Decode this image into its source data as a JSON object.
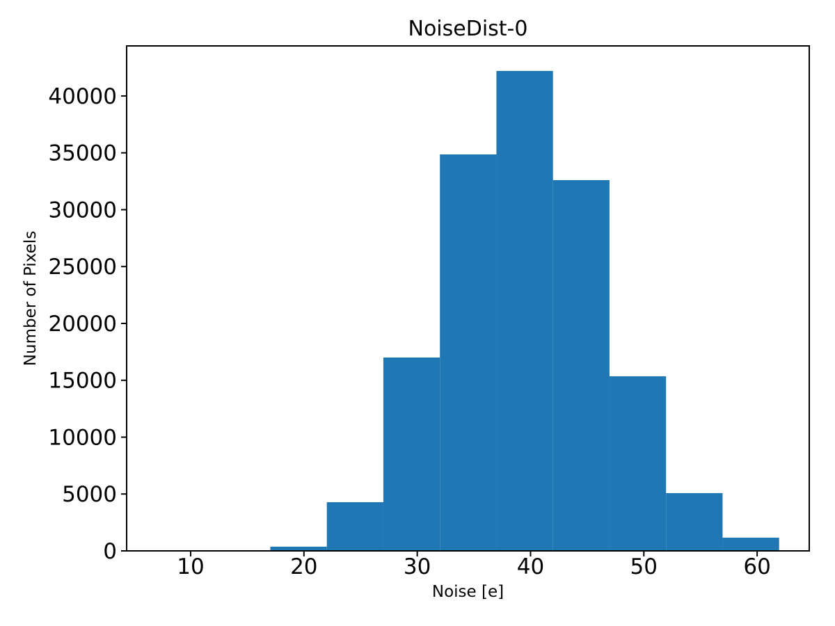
{
  "chart_data": {
    "type": "histogram",
    "title": "NoiseDist-0",
    "xlabel": "Noise [e]",
    "ylabel": "Number of Pixels",
    "bar_color": "#1f77b4",
    "axis_color": "#000000",
    "text_color": "#000000",
    "grid": false,
    "legend": null,
    "xlim": [
      4.35,
      64.6
    ],
    "ylim": [
      0,
      44400
    ],
    "bin_edges": [
      7.05,
      12.04,
      17.03,
      22.02,
      27.01,
      32.0,
      36.99,
      41.98,
      46.97,
      51.96,
      56.95,
      61.94
    ],
    "counts": [
      0,
      0,
      370,
      4280,
      17000,
      34860,
      42200,
      32600,
      15350,
      5080,
      1160
    ],
    "xticks": {
      "values": [
        10,
        20,
        30,
        40,
        50,
        60
      ],
      "labels": [
        "10",
        "20",
        "30",
        "40",
        "50",
        "60"
      ]
    },
    "yticks": {
      "values": [
        0,
        5000,
        10000,
        15000,
        20000,
        25000,
        30000,
        35000,
        40000
      ],
      "labels": [
        "0",
        "5000",
        "10000",
        "15000",
        "20000",
        "25000",
        "30000",
        "35000",
        "40000"
      ]
    }
  }
}
